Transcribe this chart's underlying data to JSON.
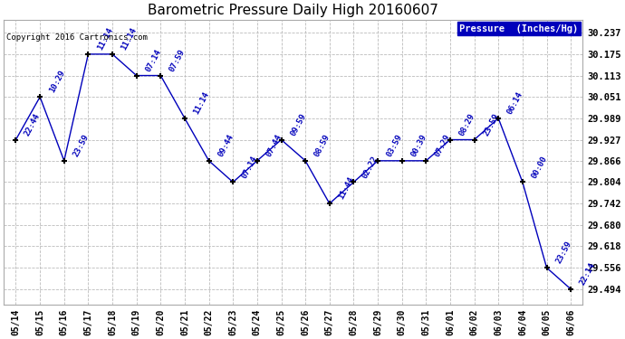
{
  "title": "Barometric Pressure Daily High 20160607",
  "copyright": "Copyright 2016 Cartronics.com",
  "legend_label": "Pressure  (Inches/Hg)",
  "line_color": "#0000bb",
  "marker_color": "#000000",
  "background_color": "#ffffff",
  "grid_color": "#bbbbbb",
  "x_labels": [
    "05/14",
    "05/15",
    "05/16",
    "05/17",
    "05/18",
    "05/19",
    "05/20",
    "05/21",
    "05/22",
    "05/23",
    "05/24",
    "05/25",
    "05/26",
    "05/27",
    "05/28",
    "05/29",
    "05/30",
    "05/31",
    "06/01",
    "06/02",
    "06/03",
    "06/04",
    "06/05",
    "06/06"
  ],
  "y_values": [
    29.927,
    30.051,
    29.866,
    30.175,
    30.175,
    30.113,
    30.113,
    29.989,
    29.866,
    29.804,
    29.866,
    29.927,
    29.866,
    29.742,
    29.804,
    29.866,
    29.866,
    29.866,
    29.927,
    29.927,
    29.989,
    29.804,
    29.556,
    29.494
  ],
  "time_labels": [
    "22:44",
    "10:29",
    "23:59",
    "11:14",
    "11:14",
    "07:14",
    "07:59",
    "11:14",
    "09:44",
    "07:14",
    "07:44",
    "09:59",
    "08:59",
    "11:44",
    "02:22",
    "03:59",
    "00:39",
    "07:29",
    "08:29",
    "23:59",
    "06:14",
    "00:00",
    "23:59",
    "22:14"
  ],
  "ylim_min": 29.45,
  "ylim_max": 30.275,
  "yticks": [
    29.494,
    29.556,
    29.618,
    29.68,
    29.742,
    29.804,
    29.866,
    29.927,
    29.989,
    30.051,
    30.113,
    30.175,
    30.237
  ],
  "ytick_labels": [
    "29.494",
    "29.556",
    "29.618",
    "29.680",
    "29.742",
    "29.804",
    "29.866",
    "29.927",
    "29.989",
    "30.051",
    "30.113",
    "30.175",
    "30.237"
  ]
}
